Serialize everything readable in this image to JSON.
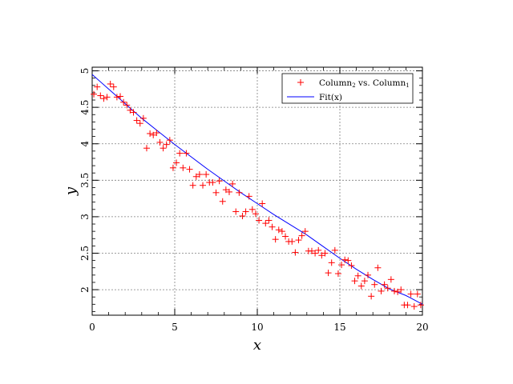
{
  "chart_data": {
    "type": "scatter",
    "xlabel": "x",
    "ylabel": "y",
    "xlim": [
      0,
      20
    ],
    "ylim": [
      1.65,
      5.05
    ],
    "xticks": [
      0,
      5,
      10,
      15,
      20
    ],
    "xtick_labels": [
      "0",
      "5",
      "10",
      "15",
      "20"
    ],
    "yticks": [
      2,
      2.5,
      3,
      3.5,
      4,
      4.5,
      5
    ],
    "ytick_labels": [
      "2",
      "2.5",
      "3",
      "3.5",
      "4",
      "4.5",
      "5"
    ],
    "grid": true,
    "legend_position": "top-right",
    "legend": {
      "scatter_main": "Column",
      "scatter_sub1": "2",
      "scatter_mid": " vs. Column",
      "scatter_sub2": "1",
      "fit_label": "Fit(x)"
    },
    "colors": {
      "points": "#ff0000",
      "fit": "#0000ff",
      "grid": "#7f7f7f"
    },
    "series": [
      {
        "kind": "points",
        "x": [
          0.1,
          0.3,
          0.5,
          0.7,
          0.9,
          1.1,
          1.3,
          1.5,
          1.7,
          1.9,
          2.1,
          2.3,
          2.5,
          2.7,
          2.9,
          3.1,
          3.3,
          3.5,
          3.7,
          3.9,
          4.1,
          4.3,
          4.5,
          4.7,
          4.9,
          5.1,
          5.3,
          5.5,
          5.7,
          5.9,
          6.1,
          6.3,
          6.5,
          6.7,
          6.9,
          7.1,
          7.3,
          7.5,
          7.7,
          7.9,
          8.1,
          8.3,
          8.5,
          8.7,
          8.9,
          9.1,
          9.3,
          9.5,
          9.7,
          9.9,
          10.1,
          10.3,
          10.5,
          10.7,
          10.9,
          11.1,
          11.3,
          11.5,
          11.7,
          11.9,
          12.1,
          12.3,
          12.5,
          12.7,
          12.9,
          13.1,
          13.3,
          13.5,
          13.7,
          13.9,
          14.1,
          14.3,
          14.5,
          14.7,
          14.9,
          15.1,
          15.3,
          15.5,
          15.7,
          15.9,
          16.1,
          16.3,
          16.5,
          16.7,
          16.9,
          17.1,
          17.3,
          17.5,
          17.7,
          17.9,
          18.1,
          18.3,
          18.5,
          18.7,
          18.9,
          19.1,
          19.3,
          19.5,
          19.7,
          19.9
        ],
        "y": [
          4.68,
          4.78,
          4.66,
          4.62,
          4.64,
          4.82,
          4.78,
          4.64,
          4.65,
          4.57,
          4.53,
          4.46,
          4.43,
          4.32,
          4.28,
          4.35,
          3.94,
          4.14,
          4.12,
          4.15,
          4.02,
          3.94,
          3.99,
          4.05,
          3.67,
          3.74,
          3.87,
          3.67,
          3.87,
          3.65,
          3.43,
          3.55,
          3.58,
          3.43,
          3.58,
          3.47,
          3.47,
          3.33,
          3.49,
          3.21,
          3.37,
          3.34,
          3.45,
          3.07,
          3.33,
          3.01,
          3.07,
          3.28,
          3.1,
          3.04,
          2.95,
          3.18,
          2.91,
          2.95,
          2.86,
          2.69,
          2.82,
          2.8,
          2.73,
          2.66,
          2.66,
          2.51,
          2.68,
          2.74,
          2.8,
          2.53,
          2.53,
          2.5,
          2.54,
          2.47,
          2.5,
          2.23,
          2.37,
          2.54,
          2.22,
          2.34,
          2.41,
          2.4,
          2.33,
          2.12,
          2.19,
          2.05,
          2.12,
          2.2,
          1.91,
          2.07,
          2.3,
          1.98,
          2.07,
          2.02,
          2.14,
          1.98,
          1.97,
          2.0,
          1.79,
          1.79,
          1.94,
          1.77,
          1.94,
          1.79
        ]
      },
      {
        "kind": "line",
        "x": [
          0,
          1,
          2,
          3,
          4,
          5,
          6,
          7,
          8,
          9,
          10,
          11,
          12,
          13,
          14,
          15,
          16,
          17,
          18,
          19,
          20
        ],
        "y": [
          4.95,
          4.75,
          4.55,
          4.35,
          4.17,
          3.99,
          3.82,
          3.65,
          3.49,
          3.33,
          3.18,
          3.03,
          2.89,
          2.75,
          2.59,
          2.43,
          2.28,
          2.14,
          2.01,
          1.92,
          1.8
        ]
      }
    ]
  }
}
